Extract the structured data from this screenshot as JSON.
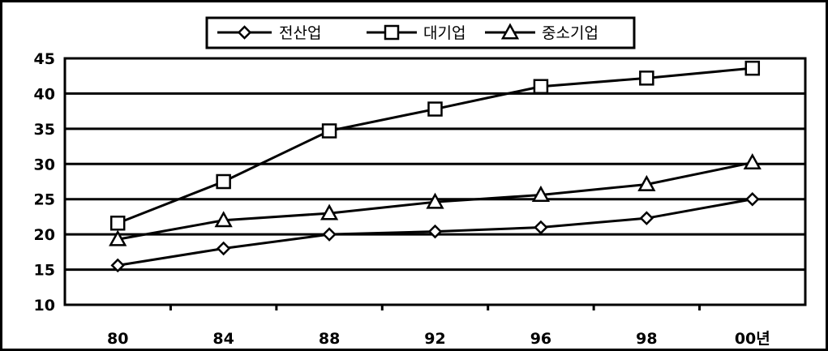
{
  "chart_data": {
    "type": "line",
    "categories": [
      "80",
      "84",
      "88",
      "92",
      "96",
      "98",
      "00년"
    ],
    "series": [
      {
        "name": "전산업",
        "marker": "diamond",
        "values": [
          15.6,
          18.0,
          20.0,
          20.4,
          21.0,
          22.3,
          25.0
        ]
      },
      {
        "name": "대기업",
        "marker": "square",
        "values": [
          21.6,
          27.5,
          34.7,
          37.8,
          41.0,
          42.2,
          43.6
        ]
      },
      {
        "name": "중소기업",
        "marker": "triangle",
        "values": [
          19.3,
          22.0,
          23.0,
          24.6,
          25.6,
          27.1,
          30.2
        ]
      }
    ],
    "ylim": [
      10,
      45
    ],
    "yticks": [
      "10",
      "15",
      "20",
      "25",
      "30",
      "35",
      "40",
      "45"
    ],
    "grid": true,
    "legend": "top-center"
  }
}
